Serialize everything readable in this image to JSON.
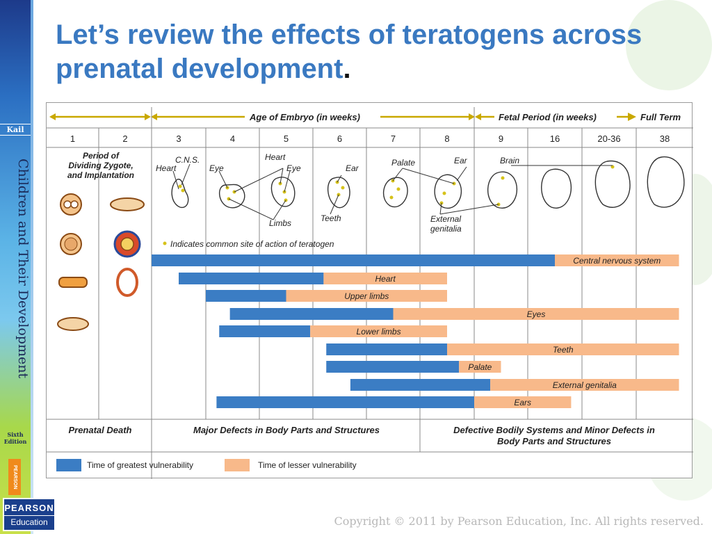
{
  "slide": {
    "title_main": "Let’s review the effects of teratogens across prenatal development",
    "title_end": ".",
    "copyright": "Copyright © 2011 by Pearson Education, Inc. All rights reserved."
  },
  "sidebar": {
    "author": "Kail",
    "book_title": "Children and Their Development",
    "edition_line1": "Sixth",
    "edition_line2": "Edition",
    "vertical_logo": "PEARSON",
    "logo_line1": "PEARSON",
    "logo_line2": "Education"
  },
  "figure": {
    "header": {
      "embryo": "Age of Embryo (in weeks)",
      "fetal": "Fetal Period (in weeks)",
      "full_term": "Full Term"
    },
    "weeks": [
      "1",
      "2",
      "3",
      "4",
      "5",
      "6",
      "7",
      "8",
      "9",
      "16",
      "20-36",
      "38"
    ],
    "zygote_label": [
      "Period of",
      "Dividing Zygote,",
      "and Implantation"
    ],
    "organ_labels": {
      "cns": "C.N.S.",
      "heart3": "Heart",
      "eye4": "Eye",
      "heart5": "Heart",
      "eye5": "Eye",
      "limbs": "Limbs",
      "ear6": "Ear",
      "teeth": "Teeth",
      "palate": "Palate",
      "ear8": "Ear",
      "external": "External",
      "genitalia": "genitalia",
      "brain": "Brain"
    },
    "note": "Indicates common site of action of teratogen",
    "bottom": {
      "prenatal_death": "Prenatal Death",
      "major": "Major Defects in Body Parts and Structures",
      "minor_line1": "Defective Bodily Systems and Minor Defects in",
      "minor_line2": "Body Parts and Structures"
    },
    "legend": {
      "greatest": "Time of greatest vulnerability",
      "lesser": "Time of lesser vulnerability"
    },
    "colors": {
      "greatest": "#3b7dc4",
      "lesser": "#f8b98a",
      "header_line": "#c9a800",
      "dot": "#d6c21a"
    }
  },
  "chart_data": {
    "type": "gantt",
    "x_categories": [
      "1",
      "2",
      "3",
      "4",
      "5",
      "6",
      "7",
      "8",
      "9",
      "16",
      "20-36",
      "38"
    ],
    "series": [
      {
        "name": "Central nervous system",
        "greatest": [
          3,
          10.5
        ],
        "lesser": [
          10.5,
          12.75
        ]
      },
      {
        "name": "Heart",
        "greatest": [
          3.5,
          6.2
        ],
        "lesser": [
          6.2,
          8.5
        ]
      },
      {
        "name": "Upper limbs",
        "greatest": [
          4,
          5.5
        ],
        "lesser": [
          5.5,
          8.5
        ]
      },
      {
        "name": "Eyes",
        "greatest": [
          4.45,
          7.5
        ],
        "lesser": [
          7.5,
          12.75
        ]
      },
      {
        "name": "Lower limbs",
        "greatest": [
          4.25,
          5.95
        ],
        "lesser": [
          5.95,
          8.5
        ]
      },
      {
        "name": "Teeth",
        "greatest": [
          6.25,
          8.5
        ],
        "lesser": [
          8.5,
          12.75
        ]
      },
      {
        "name": "Palate",
        "greatest": [
          6.25,
          8.72
        ],
        "lesser": [
          8.72,
          9.5
        ]
      },
      {
        "name": "External genitalia",
        "greatest": [
          6.7,
          9.3
        ],
        "lesser": [
          9.3,
          12.75
        ]
      },
      {
        "name": "Ears",
        "greatest": [
          4.2,
          9
        ],
        "lesser": [
          9,
          10.8
        ]
      }
    ]
  }
}
